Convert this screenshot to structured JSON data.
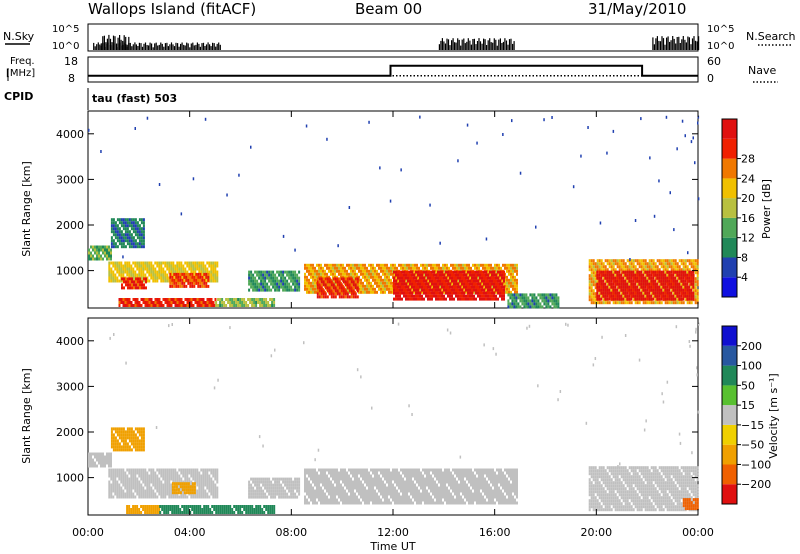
{
  "header": {
    "station": "Wallops Island (fitACF)",
    "beam": "Beam 00",
    "date": "31/May/2010"
  },
  "top_panels": {
    "nsky_label": "N.Sky",
    "nsearch_label": "N.Search",
    "count_ticks": [
      "10^5",
      "10^0"
    ],
    "freq_label_line1": "Freq.",
    "freq_label_line2": "[MHz]",
    "freq_ticks": [
      "18",
      "8"
    ],
    "nave_label": "Nave",
    "nave_ticks": [
      "60",
      "0"
    ],
    "cpid_label": "CPID",
    "cpid_text": "tau (fast) 503"
  },
  "chart_data": [
    {
      "type": "heatmap",
      "title": "",
      "xlabel": "Time UT",
      "ylabel": "Slant Range [km]",
      "x_ticks": [
        "00:00",
        "04:00",
        "08:00",
        "12:00",
        "16:00",
        "20:00",
        "00:00"
      ],
      "y_ticks": [
        1000,
        2000,
        3000,
        4000
      ],
      "xlim_hours": [
        0,
        24
      ],
      "ylim_km": [
        180,
        4500
      ],
      "colorbar": {
        "label": "Power [dB]",
        "ticks": [
          "4",
          "8",
          "12",
          "16",
          "20",
          "24",
          "28"
        ],
        "colors": [
          "#1010e0",
          "#2040b0",
          "#208858",
          "#50a858",
          "#b8c040",
          "#f0c000",
          "#f07800",
          "#f02000",
          "#e01010"
        ]
      },
      "regions": [
        {
          "t0": 0.0,
          "t1": 0.9,
          "r0": 1250,
          "r1": 1550,
          "value": 12
        },
        {
          "t0": 0.9,
          "t1": 2.2,
          "r0": 1550,
          "r1": 2150,
          "value": 8
        },
        {
          "t0": 0.8,
          "t1": 5.1,
          "r0": 750,
          "r1": 1200,
          "value": 18
        },
        {
          "t0": 1.3,
          "t1": 2.3,
          "r0": 600,
          "r1": 850,
          "value": 26
        },
        {
          "t0": 3.2,
          "t1": 4.7,
          "r0": 650,
          "r1": 950,
          "value": 25
        },
        {
          "t0": 1.2,
          "t1": 5.0,
          "r0": 250,
          "r1": 400,
          "value": 26
        },
        {
          "t0": 5.0,
          "t1": 7.3,
          "r0": 250,
          "r1": 400,
          "value": 14
        },
        {
          "t0": 6.3,
          "t1": 8.3,
          "r0": 600,
          "r1": 1000,
          "value": 10
        },
        {
          "t0": 8.5,
          "t1": 16.9,
          "r0": 500,
          "r1": 1150,
          "value": 20
        },
        {
          "t0": 9.0,
          "t1": 10.6,
          "r0": 450,
          "r1": 850,
          "value": 26
        },
        {
          "t0": 12.0,
          "t1": 16.4,
          "r0": 400,
          "r1": 1000,
          "value": 28
        },
        {
          "t0": 16.5,
          "t1": 18.5,
          "r0": 200,
          "r1": 500,
          "value": 10
        },
        {
          "t0": 19.7,
          "t1": 24.0,
          "r0": 300,
          "r1": 1250,
          "value": 20
        },
        {
          "t0": 20.0,
          "t1": 23.8,
          "r0": 350,
          "r1": 1000,
          "value": 30
        }
      ]
    },
    {
      "type": "heatmap",
      "title": "",
      "xlabel": "Time UT",
      "ylabel": "Slant Range [km]",
      "x_ticks": [
        "00:00",
        "04:00",
        "08:00",
        "12:00",
        "16:00",
        "20:00",
        "00:00"
      ],
      "y_ticks": [
        1000,
        2000,
        3000,
        4000
      ],
      "xlim_hours": [
        0,
        24
      ],
      "ylim_km": [
        180,
        4500
      ],
      "colorbar": {
        "label": "Velocity [m s⁻¹]",
        "ticks": [
          "200",
          "100",
          "50",
          "15",
          "−15",
          "−50",
          "−100",
          "−200"
        ],
        "colors": [
          "#1010d0",
          "#2858a0",
          "#208858",
          "#58c030",
          "#c0c0c0",
          "#f0d000",
          "#f0a000",
          "#f06000",
          "#e01010"
        ]
      },
      "regions": [
        {
          "t0": 0.0,
          "t1": 0.9,
          "r0": 1250,
          "r1": 1550,
          "value": 0
        },
        {
          "t0": 0.9,
          "t1": 2.2,
          "r0": 1600,
          "r1": 2100,
          "value": -40
        },
        {
          "t0": 0.8,
          "t1": 5.1,
          "r0": 600,
          "r1": 1200,
          "value": 0
        },
        {
          "t0": 3.3,
          "t1": 4.2,
          "r0": 700,
          "r1": 900,
          "value": -40
        },
        {
          "t0": 1.5,
          "t1": 2.8,
          "r0": 250,
          "r1": 400,
          "value": -45
        },
        {
          "t0": 2.8,
          "t1": 7.3,
          "r0": 250,
          "r1": 400,
          "value": 60
        },
        {
          "t0": 6.3,
          "t1": 8.3,
          "r0": 600,
          "r1": 1000,
          "value": 0
        },
        {
          "t0": 8.5,
          "t1": 16.9,
          "r0": 450,
          "r1": 1200,
          "value": 0
        },
        {
          "t0": 19.7,
          "t1": 24.0,
          "r0": 300,
          "r1": 1250,
          "value": 0
        },
        {
          "t0": 23.4,
          "t1": 24.0,
          "r0": 300,
          "r1": 550,
          "value": -80
        }
      ]
    }
  ],
  "panel_series": {
    "nsky_activity": [
      {
        "t0": 0.2,
        "t1": 5.2,
        "level": 0.35
      },
      {
        "t0": 0.5,
        "t1": 1.6,
        "level": 0.7
      },
      {
        "t0": 13.8,
        "t1": 16.8,
        "level": 0.55
      },
      {
        "t0": 22.2,
        "t1": 24.0,
        "level": 0.65
      }
    ],
    "freq_steps": [
      {
        "t0": 0,
        "t1": 11.9,
        "value": 10.5
      },
      {
        "t0": 11.9,
        "t1": 21.8,
        "value": 14.5
      },
      {
        "t0": 21.8,
        "t1": 24,
        "value": 10.5
      }
    ],
    "nave_value": 15
  }
}
